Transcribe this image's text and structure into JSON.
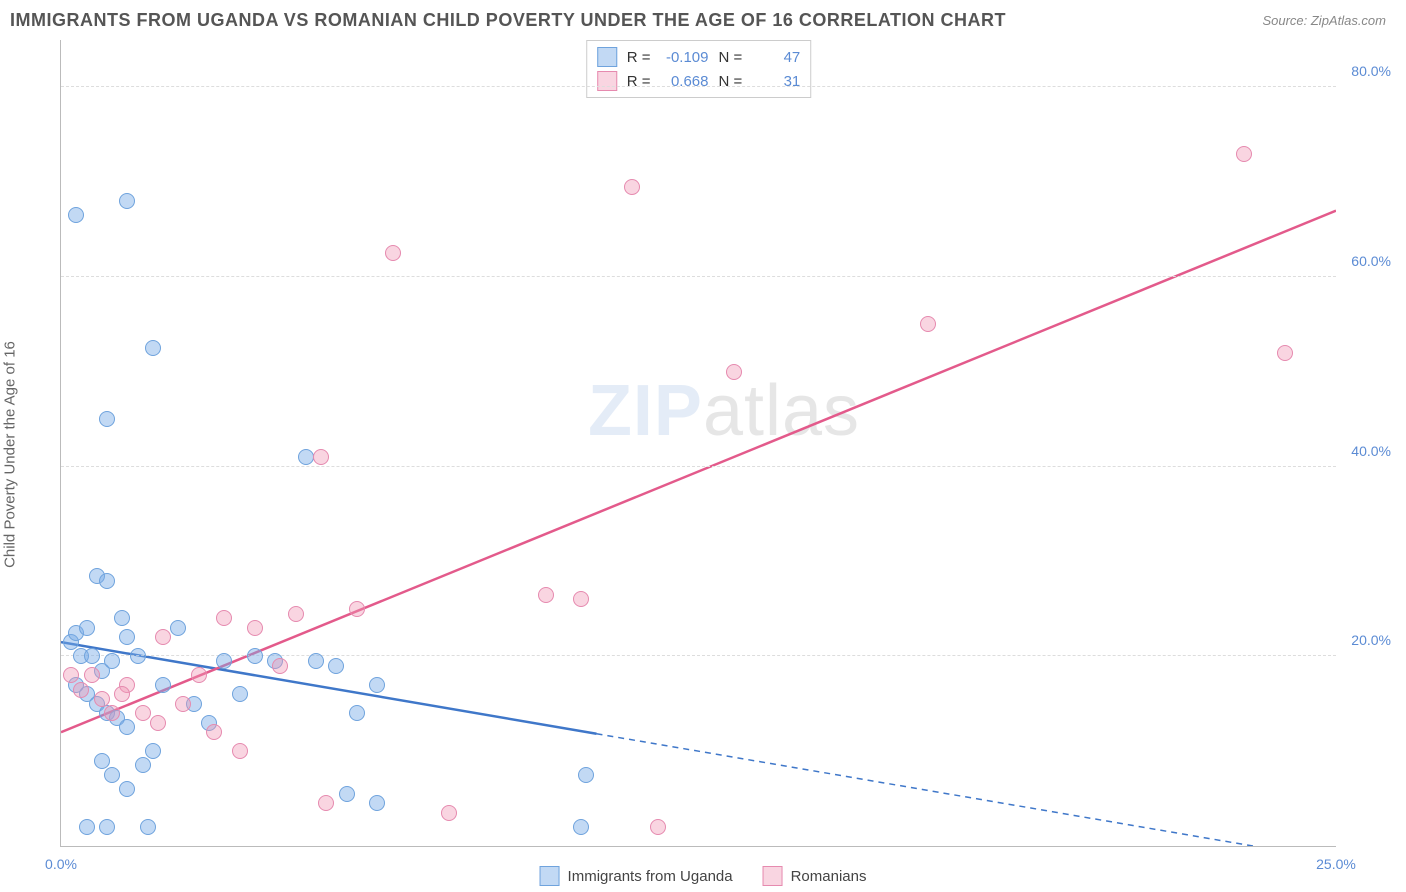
{
  "title": "IMMIGRANTS FROM UGANDA VS ROMANIAN CHILD POVERTY UNDER THE AGE OF 16 CORRELATION CHART",
  "source_prefix": "Source: ",
  "source": "ZipAtlas.com",
  "y_axis_label": "Child Poverty Under the Age of 16",
  "watermark_bold": "ZIP",
  "watermark_thin": "atlas",
  "xlim": [
    0,
    25
  ],
  "ylim": [
    0,
    85
  ],
  "x_ticks": [
    {
      "v": 0,
      "label": "0.0%"
    },
    {
      "v": 25,
      "label": "25.0%"
    }
  ],
  "y_ticks": [
    {
      "v": 20,
      "label": "20.0%"
    },
    {
      "v": 40,
      "label": "40.0%"
    },
    {
      "v": 60,
      "label": "60.0%"
    },
    {
      "v": 80,
      "label": "80.0%"
    }
  ],
  "grid_color": "#dddddd",
  "background_color": "#ffffff",
  "axis_tick_color": "#5b8bd4",
  "series": [
    {
      "name": "Immigrants from Uganda",
      "fill": "rgba(120,170,230,0.45)",
      "stroke": "#6fa3dd",
      "line_color": "#3f77c9",
      "R_label": "R  =",
      "R": "-0.109",
      "N_label": "N  =",
      "N": "47",
      "reg": {
        "x1": 0,
        "y1": 21.5,
        "x2": 25,
        "y2": -1.5,
        "solid_until_x": 10.5
      },
      "points": [
        [
          0.3,
          66.5
        ],
        [
          1.3,
          68
        ],
        [
          1.8,
          52.5
        ],
        [
          0.9,
          45
        ],
        [
          4.8,
          41
        ],
        [
          0.2,
          21.5
        ],
        [
          0.3,
          22.5
        ],
        [
          0.4,
          20
        ],
        [
          0.5,
          23
        ],
        [
          0.7,
          28.5
        ],
        [
          0.9,
          28
        ],
        [
          1.2,
          24
        ],
        [
          1.3,
          22
        ],
        [
          0.6,
          20
        ],
        [
          0.8,
          18.5
        ],
        [
          1.0,
          19.5
        ],
        [
          1.5,
          20
        ],
        [
          0.3,
          17
        ],
        [
          0.5,
          16
        ],
        [
          0.7,
          15
        ],
        [
          0.9,
          14
        ],
        [
          1.1,
          13.5
        ],
        [
          1.3,
          12.5
        ],
        [
          1.6,
          8.5
        ],
        [
          1.8,
          10
        ],
        [
          2.0,
          17
        ],
        [
          2.3,
          23
        ],
        [
          2.6,
          15
        ],
        [
          2.9,
          13
        ],
        [
          3.2,
          19.5
        ],
        [
          3.5,
          16
        ],
        [
          3.8,
          20
        ],
        [
          4.2,
          19.5
        ],
        [
          5.0,
          19.5
        ],
        [
          5.4,
          19
        ],
        [
          5.8,
          14
        ],
        [
          6.2,
          17
        ],
        [
          5.6,
          5.5
        ],
        [
          6.2,
          4.5
        ],
        [
          0.8,
          9
        ],
        [
          1.0,
          7.5
        ],
        [
          1.3,
          6
        ],
        [
          0.5,
          2
        ],
        [
          0.9,
          2
        ],
        [
          1.7,
          2
        ],
        [
          10.2,
          2
        ],
        [
          10.3,
          7.5
        ]
      ]
    },
    {
      "name": "Romanians",
      "fill": "rgba(240,150,180,0.4)",
      "stroke": "#e68aaf",
      "line_color": "#e35a8b",
      "R_label": "R  =",
      "R": "0.668",
      "N_label": "N  =",
      "N": "31",
      "reg": {
        "x1": 0,
        "y1": 12,
        "x2": 25,
        "y2": 67,
        "solid_until_x": 25
      },
      "points": [
        [
          11.2,
          69.5
        ],
        [
          23.2,
          73
        ],
        [
          6.5,
          62.5
        ],
        [
          17,
          55
        ],
        [
          13.2,
          50
        ],
        [
          24,
          52
        ],
        [
          5.1,
          41
        ],
        [
          9.5,
          26.5
        ],
        [
          10.2,
          26
        ],
        [
          4.6,
          24.5
        ],
        [
          5.8,
          25
        ],
        [
          3.2,
          24
        ],
        [
          3.8,
          23
        ],
        [
          4.3,
          19
        ],
        [
          2.7,
          18
        ],
        [
          2.0,
          22
        ],
        [
          2.4,
          15
        ],
        [
          1.3,
          17
        ],
        [
          1.6,
          14
        ],
        [
          1.9,
          13
        ],
        [
          0.6,
          18
        ],
        [
          0.8,
          15.5
        ],
        [
          1.0,
          14
        ],
        [
          1.2,
          16
        ],
        [
          3.0,
          12
        ],
        [
          3.5,
          10
        ],
        [
          5.2,
          4.5
        ],
        [
          7.6,
          3.5
        ],
        [
          11.7,
          2
        ],
        [
          0.2,
          18
        ],
        [
          0.4,
          16.5
        ]
      ]
    }
  ]
}
